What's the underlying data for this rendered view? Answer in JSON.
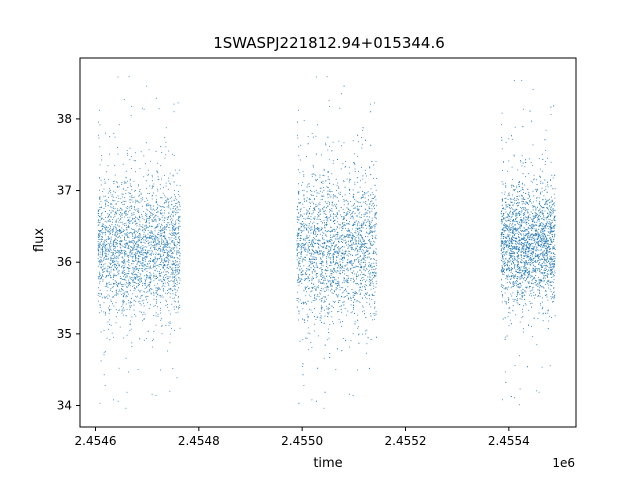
{
  "chart_data": {
    "type": "scatter",
    "title": "1SWASPJ221812.94+015344.6",
    "xlabel": "time",
    "ylabel": "flux",
    "offset_text": "1e6",
    "xlim": [
      2454570,
      2455530
    ],
    "ylim": [
      33.7,
      38.85
    ],
    "xticks": [
      2454600,
      2454800,
      2455000,
      2455200,
      2455400
    ],
    "xtick_labels": [
      "2.4546",
      "2.4548",
      "2.4550",
      "2.4552",
      "2.4554"
    ],
    "yticks": [
      34,
      35,
      36,
      37,
      38
    ],
    "ytick_labels": [
      "34",
      "35",
      "36",
      "37",
      "38"
    ],
    "grid": false,
    "point_color": "#1f77b4",
    "segments": [
      {
        "x_start": 2454605,
        "x_end": 2454765,
        "center": 36.2,
        "spread": 0.45,
        "outlier_range": [
          33.95,
          38.6
        ]
      },
      {
        "x_start": 2454990,
        "x_end": 2455145,
        "center": 36.2,
        "spread": 0.5,
        "outlier_range": [
          33.95,
          38.6
        ]
      },
      {
        "x_start": 2455385,
        "x_end": 2455490,
        "center": 36.25,
        "spread": 0.4,
        "outlier_range": [
          34.0,
          38.55
        ]
      }
    ]
  }
}
